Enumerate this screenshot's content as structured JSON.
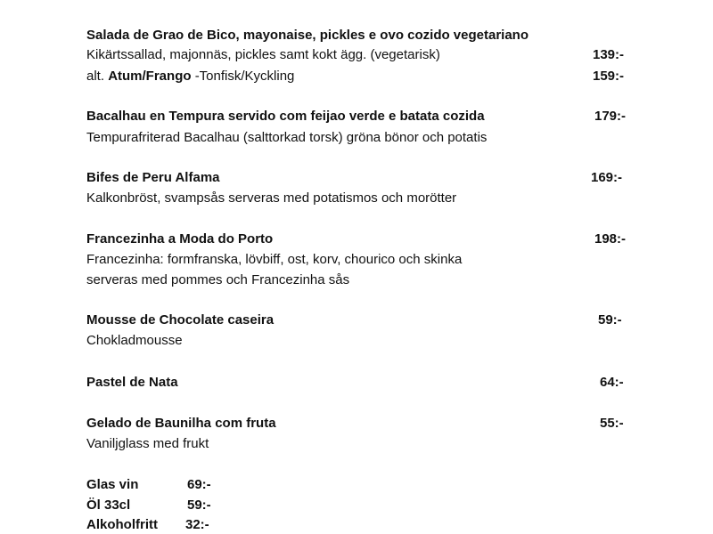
{
  "items": [
    {
      "title": "Salada de Grao de Bico, mayonaise, pickles e ovo cozido vegetariano",
      "desc": "Kikärtssallad, majonnäs, pickles samt kokt ägg. (vegetarisk)",
      "price": "139:-",
      "alt_prefix": "alt.",
      "alt_bold": "Atum/Frango",
      "alt_rest": "-Tonfisk/Kyckling",
      "alt_price": "159:-"
    },
    {
      "title": "Bacalhau en Tempura servido com feijao verde e batata cozida",
      "price": "179:-",
      "desc": "Tempurafriterad Bacalhau (salttorkad torsk) gröna bönor och potatis"
    },
    {
      "title": "Bifes de Peru Alfama",
      "price": "169:-",
      "desc": "Kalkonbröst, svampsås serveras med potatismos och morötter"
    },
    {
      "title": "Francezinha a Moda do Porto",
      "price": "198:-",
      "desc": "Francezinha: formfranska, lövbiff, ost, korv, chourico och skinka",
      "desc2": "serveras med pommes och Francezinha sås"
    },
    {
      "title": "Mousse de Chocolate caseira",
      "price": "59:-",
      "desc": "Chokladmousse"
    },
    {
      "title": "Pastel de Nata",
      "price": "64:-"
    },
    {
      "title": "Gelado de Baunilha com fruta",
      "price": "55:-",
      "desc": "Vaniljglass med frukt"
    }
  ],
  "drinks": [
    {
      "name": "Glas vin",
      "price": "69:-"
    },
    {
      "name": "Öl 33cl",
      "price": "59:-"
    },
    {
      "name": "Alkoholfritt",
      "price": "32:-"
    }
  ]
}
